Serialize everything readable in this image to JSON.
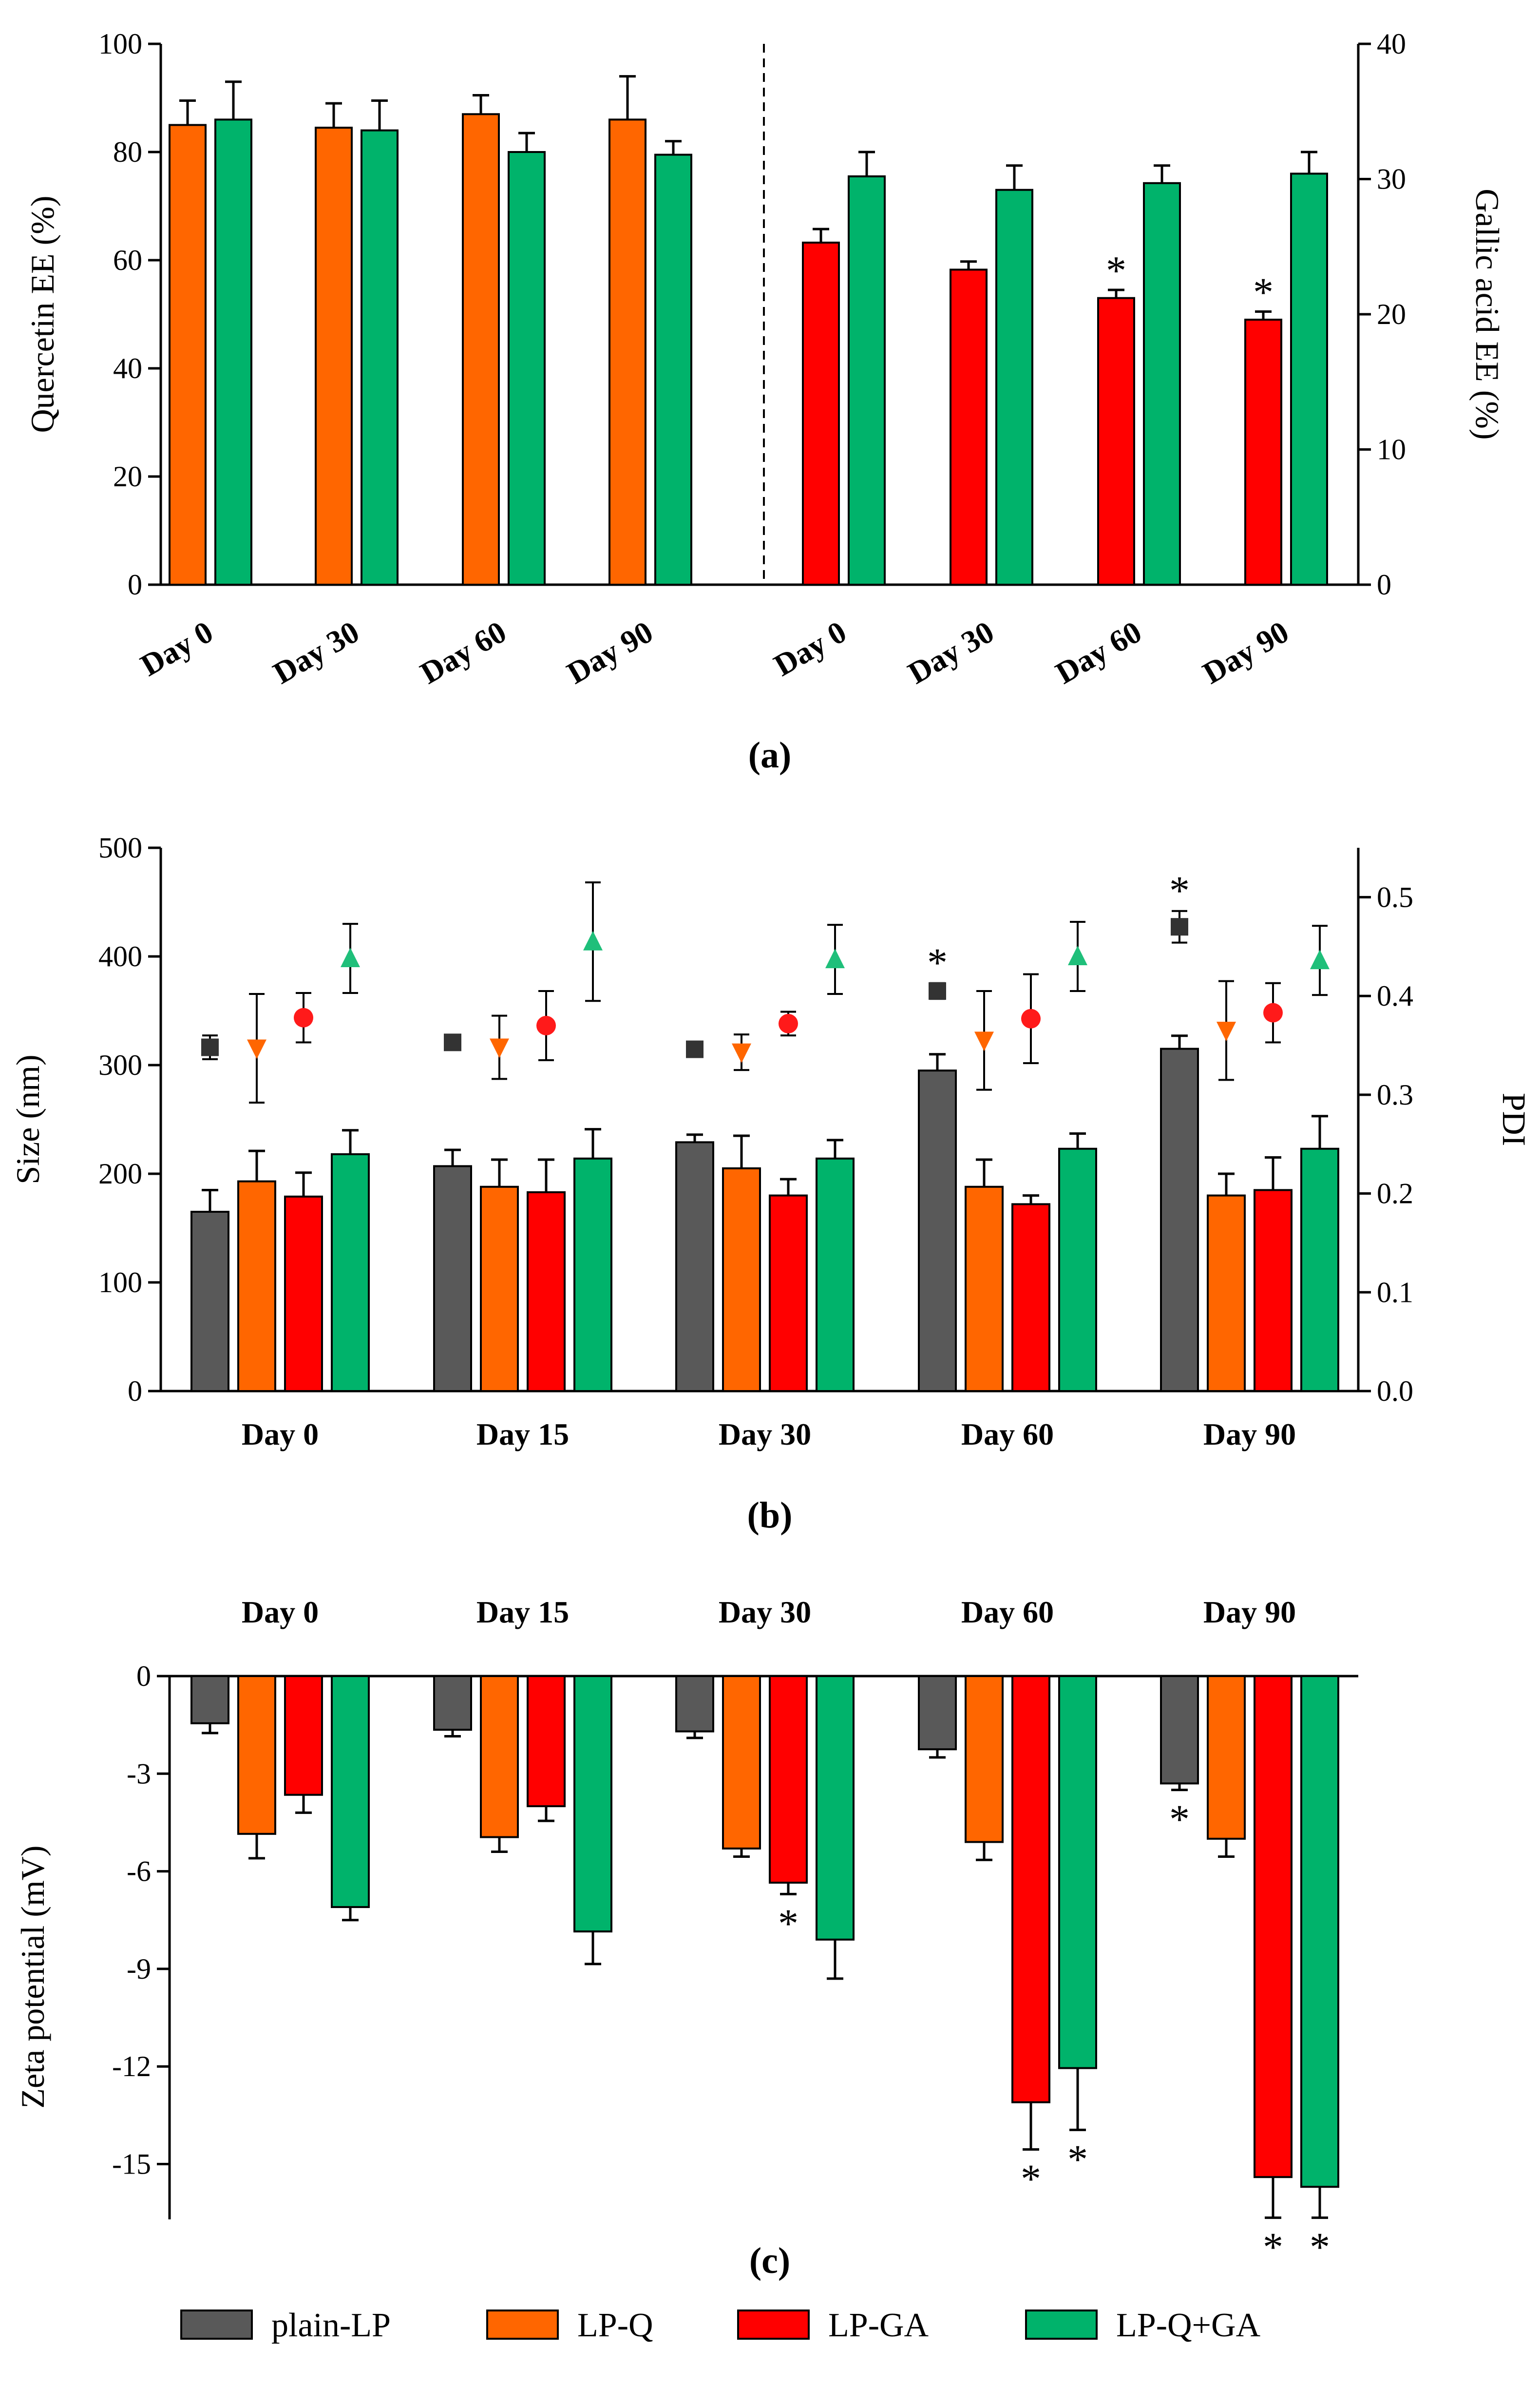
{
  "colors": {
    "plain_lp": "#595959",
    "lp_q": "#ff6600",
    "lp_ga": "#ff0000",
    "lp_q_ga": "#00b36b",
    "marker_plain_lp": "#333333",
    "marker_lp_q": "#ff6600",
    "marker_lp_ga": "#ff1a1a",
    "marker_lp_q_ga": "#1fbf7a"
  },
  "legend": {
    "items": [
      {
        "key": "plain_lp",
        "label": "plain-LP"
      },
      {
        "key": "lp_q",
        "label": "LP-Q"
      },
      {
        "key": "lp_ga",
        "label": "LP-GA"
      },
      {
        "key": "lp_q_ga",
        "label": "LP-Q+GA"
      }
    ]
  },
  "chart_data": [
    {
      "panel_label": "(a)",
      "type": "bar",
      "left_axis": {
        "label": "Quercetin EE (%)",
        "ylim": [
          0,
          100
        ],
        "ticks": [
          "0",
          "20",
          "40",
          "60",
          "80",
          "100"
        ]
      },
      "right_axis": {
        "label": "Gallic acid EE (%)",
        "ylim": [
          0,
          40
        ],
        "ticks": [
          "0",
          "10",
          "20",
          "30",
          "40"
        ]
      },
      "left_group": {
        "categories": [
          "Day 0",
          "Day 30",
          "Day 60",
          "Day 90"
        ],
        "axis": "left",
        "series": [
          {
            "key": "lp_q",
            "name": "LP-Q",
            "values": [
              85,
              84.5,
              87,
              86
            ],
            "errors": [
              4.5,
              4.5,
              3.5,
              8
            ]
          },
          {
            "key": "lp_q_ga",
            "name": "LP-Q+GA",
            "values": [
              86,
              84,
              80,
              79.5
            ],
            "errors": [
              7,
              5.5,
              3.5,
              2.5
            ]
          }
        ]
      },
      "right_group": {
        "categories": [
          "Day 0",
          "Day 30",
          "Day 60",
          "Day 90"
        ],
        "axis": "right",
        "series": [
          {
            "key": "lp_ga",
            "name": "LP-GA",
            "values": [
              25.3,
              23.3,
              21.2,
              19.6
            ],
            "errors": [
              1,
              0.6,
              0.6,
              0.6
            ],
            "significant": [
              false,
              false,
              true,
              true
            ]
          },
          {
            "key": "lp_q_ga",
            "name": "LP-Q+GA",
            "values": [
              30.2,
              29.2,
              29.7,
              30.4
            ],
            "errors": [
              1.8,
              1.8,
              1.3,
              1.6
            ]
          }
        ]
      }
    },
    {
      "panel_label": "(b)",
      "type": "bar",
      "left_axis": {
        "label": "Size (nm)",
        "ylim": [
          0,
          500
        ],
        "ticks": [
          "0",
          "100",
          "200",
          "300",
          "400",
          "500"
        ]
      },
      "right_axis": {
        "label": "PDI",
        "ylim": [
          0,
          0.55
        ],
        "ticks": [
          "0.0",
          "0.1",
          "0.2",
          "0.3",
          "0.4",
          "0.5"
        ]
      },
      "categories": [
        "Day 0",
        "Day 15",
        "Day 30",
        "Day 60",
        "Day 90"
      ],
      "series": [
        {
          "key": "plain_lp",
          "name": "plain-LP",
          "size": [
            165,
            207,
            229,
            295,
            315
          ],
          "size_err": [
            20,
            15,
            7,
            15,
            12
          ],
          "pdi": [
            0.348,
            0.353,
            0.346,
            0.405,
            0.47
          ],
          "pdi_err": [
            0.012,
            0.004,
            0.004,
            0.008,
            0.016
          ],
          "pdi_significant": [
            false,
            false,
            false,
            true,
            true
          ],
          "marker": "square"
        },
        {
          "key": "lp_q",
          "name": "LP-Q",
          "size": [
            193,
            188,
            205,
            188,
            180
          ],
          "size_err": [
            28,
            25,
            30,
            25,
            20
          ],
          "pdi": [
            0.347,
            0.348,
            0.343,
            0.355,
            0.365
          ],
          "pdi_err": [
            0.055,
            0.032,
            0.018,
            0.05,
            0.05
          ],
          "marker": "triangle-down"
        },
        {
          "key": "lp_ga",
          "name": "LP-GA",
          "size": [
            179,
            183,
            180,
            172,
            185
          ],
          "size_err": [
            22,
            30,
            15,
            8,
            30
          ],
          "pdi": [
            0.378,
            0.37,
            0.372,
            0.377,
            0.383
          ],
          "pdi_err": [
            0.025,
            0.035,
            0.012,
            0.045,
            0.03
          ],
          "marker": "circle"
        },
        {
          "key": "lp_q_ga",
          "name": "LP-Q+GA",
          "size": [
            218,
            214,
            214,
            223,
            223
          ],
          "size_err": [
            22,
            27,
            17,
            14,
            30
          ],
          "pdi": [
            0.438,
            0.455,
            0.437,
            0.44,
            0.436
          ],
          "pdi_err": [
            0.035,
            0.06,
            0.035,
            0.035,
            0.035
          ],
          "marker": "triangle-up"
        }
      ]
    },
    {
      "panel_label": "(c)",
      "type": "bar",
      "left_axis": {
        "label": "Zeta potential (mV)",
        "ylim": [
          -16.7,
          0
        ],
        "ticks": [
          "0",
          "-3",
          "-6",
          "-9",
          "-12",
          "-15"
        ]
      },
      "categories": [
        "Day 0",
        "Day 15",
        "Day 30",
        "Day 60",
        "Day 90"
      ],
      "series": [
        {
          "key": "plain_lp",
          "name": "plain-LP",
          "values": [
            -1.45,
            -1.65,
            -1.7,
            -2.25,
            -3.3
          ],
          "errors": [
            0.3,
            0.2,
            0.2,
            0.25,
            0.2
          ],
          "significant": [
            false,
            false,
            false,
            false,
            true
          ]
        },
        {
          "key": "lp_q",
          "name": "LP-Q",
          "values": [
            -4.85,
            -4.95,
            -5.3,
            -5.1,
            -5.0
          ],
          "errors": [
            0.75,
            0.45,
            0.25,
            0.55,
            0.55
          ],
          "significant": [
            false,
            false,
            false,
            false,
            false
          ]
        },
        {
          "key": "lp_ga",
          "name": "LP-GA",
          "values": [
            -3.65,
            -4.0,
            -6.35,
            -13.1,
            -15.4
          ],
          "errors": [
            0.55,
            0.45,
            0.35,
            1.45,
            1.25
          ],
          "significant": [
            false,
            false,
            true,
            true,
            true
          ]
        },
        {
          "key": "lp_q_ga",
          "name": "LP-Q+GA",
          "values": [
            -7.1,
            -7.85,
            -8.1,
            -12.05,
            -15.7
          ],
          "errors": [
            0.4,
            1.0,
            1.2,
            1.9,
            0.95
          ],
          "significant": [
            false,
            false,
            false,
            true,
            true
          ]
        }
      ]
    }
  ],
  "significance_symbol": "*"
}
